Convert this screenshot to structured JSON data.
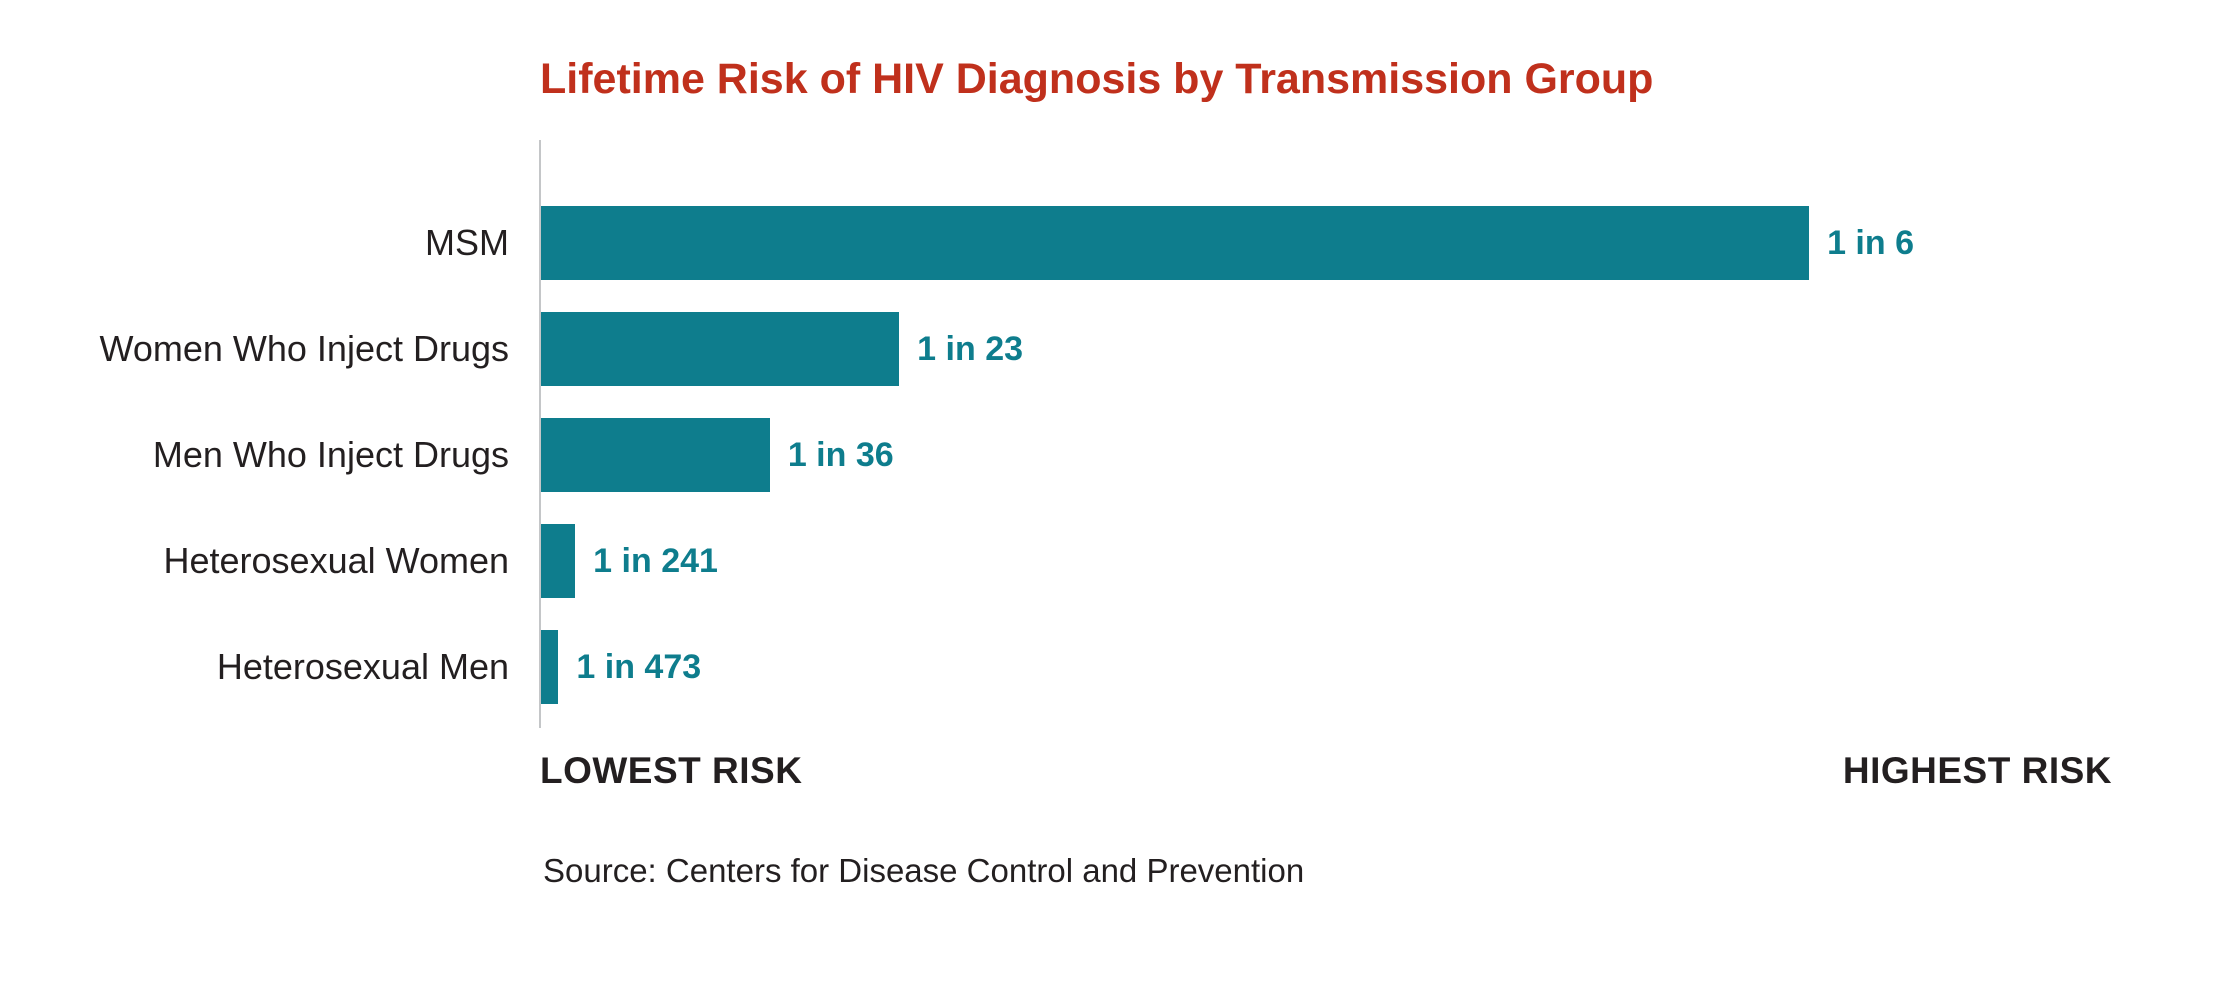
{
  "chart_data": {
    "type": "bar",
    "orientation": "horizontal",
    "title": "Lifetime Risk of HIV Diagnosis by Transmission Group",
    "title_color": "#c0301c",
    "bar_color": "#0e7d8d",
    "value_label_color": "#0e7d8d",
    "categories": [
      "MSM",
      "Women Who Inject Drugs",
      "Men Who Inject Drugs",
      "Heterosexual Women",
      "Heterosexual Men"
    ],
    "values_one_in": [
      6,
      23,
      36,
      241,
      473
    ],
    "value_labels": [
      "1 in 6",
      "1 in 23",
      "1 in 36",
      "1 in 241",
      "1 in 473"
    ],
    "axis": {
      "min_label": "LOWEST RISK",
      "max_label": "HIGHEST RISK"
    },
    "source": "Source: Centers for Disease Control and Prevention",
    "legend": "none",
    "grid": "off"
  }
}
